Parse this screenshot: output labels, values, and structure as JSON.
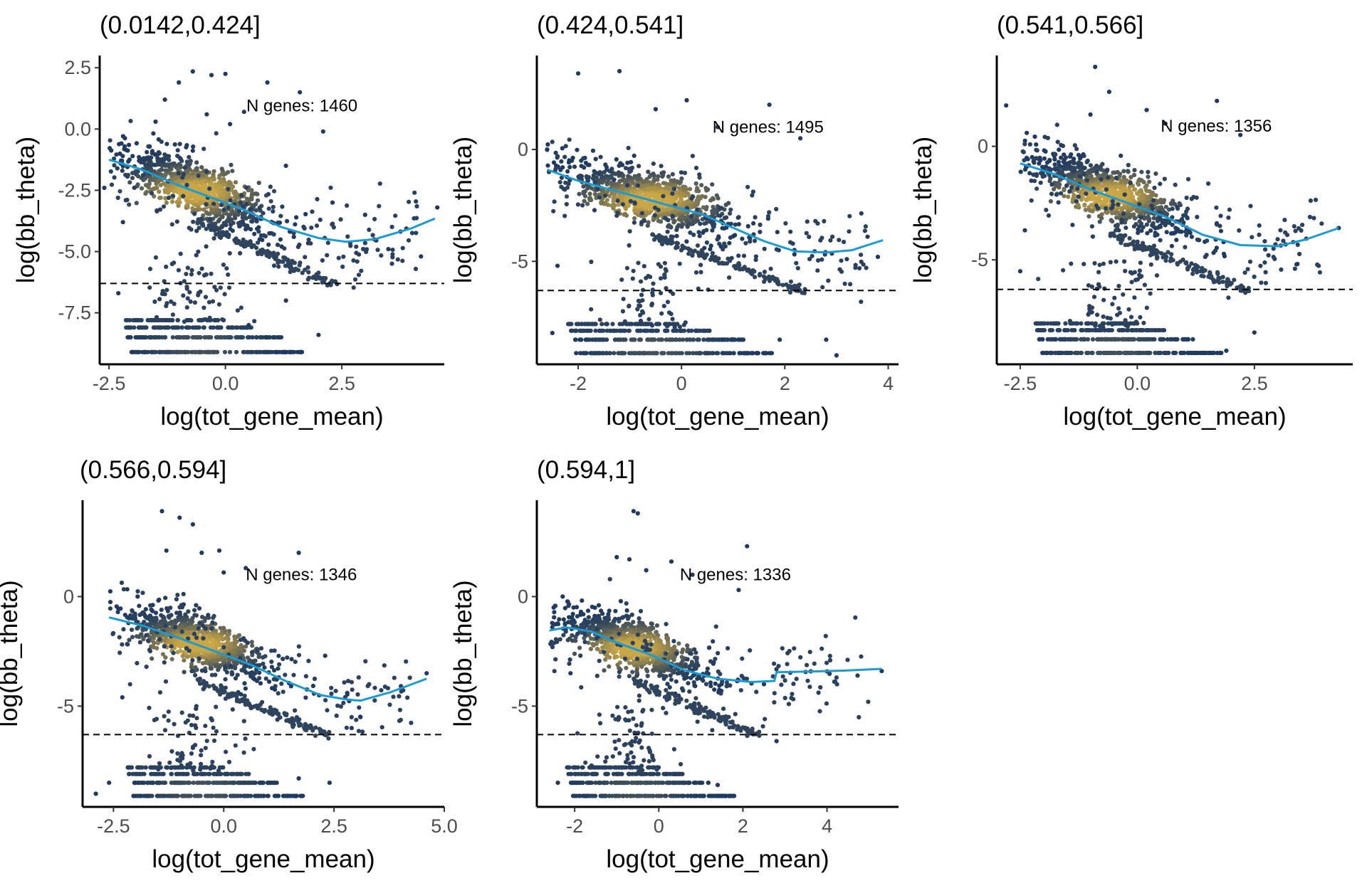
{
  "figure": {
    "point_color_low": "#1f3a5f",
    "point_color_high": "#c9a646",
    "trend_color": "#1b9bd1"
  },
  "chart_data": [
    {
      "type": "scatter",
      "title": "(0.0142,0.424]",
      "xlabel": "log(tot_gene_mean)",
      "ylabel": "log(bb_theta)",
      "xlim": [
        -2.7,
        4.7
      ],
      "ylim": [
        -9.6,
        3.0
      ],
      "xticks": [
        -2.5,
        0.0,
        2.5
      ],
      "xtick_labels": [
        "-2.5",
        "0.0",
        "2.5"
      ],
      "yticks": [
        2.5,
        0.0,
        -2.5,
        -5.0,
        -7.5
      ],
      "ytick_labels": [
        "2.5",
        "0.0",
        "-2.5",
        "-5.0",
        "-7.5"
      ],
      "annotation": {
        "text": "N genes: 1460",
        "x": 0.45,
        "y": 0.95
      },
      "hline_y": -6.3,
      "trend": [
        [
          -2.5,
          -1.25
        ],
        [
          -1.8,
          -1.65
        ],
        [
          -1.0,
          -2.3
        ],
        [
          -0.3,
          -2.8
        ],
        [
          0.4,
          -3.3
        ],
        [
          1.2,
          -4.0
        ],
        [
          2.0,
          -4.45
        ],
        [
          2.6,
          -4.6
        ],
        [
          3.2,
          -4.5
        ],
        [
          4.0,
          -4.05
        ],
        [
          4.5,
          -3.65
        ]
      ],
      "outliers": [
        [
          -1.5,
          0.3
        ],
        [
          -1.3,
          1.2
        ],
        [
          -1.0,
          1.9
        ],
        [
          -0.7,
          2.35
        ],
        [
          -0.3,
          2.2
        ],
        [
          0.0,
          2.25
        ],
        [
          0.4,
          0.7
        ],
        [
          0.9,
          1.9
        ],
        [
          1.6,
          1.5
        ],
        [
          2.1,
          -0.1
        ],
        [
          -0.4,
          0.6
        ],
        [
          0.1,
          0.2
        ],
        [
          1.3,
          -1.5
        ],
        [
          2.3,
          -3.0
        ],
        [
          3.0,
          -3.5
        ],
        [
          3.5,
          -4.9
        ],
        [
          4.2,
          -5.2
        ],
        [
          4.55,
          -3.2
        ],
        [
          -2.2,
          -3.8
        ],
        [
          -2.6,
          -2.4
        ],
        [
          -2.3,
          -6.7
        ],
        [
          0.5,
          -8.0
        ],
        [
          1.3,
          -7.0
        ],
        [
          2.0,
          -8.4
        ]
      ]
    },
    {
      "type": "scatter",
      "title": "(0.424,0.541]",
      "xlabel": "log(tot_gene_mean)",
      "ylabel": "log(bb_theta)",
      "xlim": [
        -2.8,
        4.2
      ],
      "ylim": [
        -9.6,
        4.2
      ],
      "xticks": [
        -2,
        0,
        2,
        4
      ],
      "xtick_labels": [
        "-2",
        "0",
        "2",
        "4"
      ],
      "yticks": [
        0,
        -5
      ],
      "ytick_labels": [
        "0",
        "-5"
      ],
      "annotation": {
        "text": "N genes: 1495",
        "x": 0.6,
        "y": 1.0
      },
      "hline_y": -6.3,
      "trend": [
        [
          -2.6,
          -0.9
        ],
        [
          -2.0,
          -1.4
        ],
        [
          -1.2,
          -1.9
        ],
        [
          -0.4,
          -2.4
        ],
        [
          0.4,
          -2.9
        ],
        [
          1.0,
          -3.5
        ],
        [
          1.6,
          -4.1
        ],
        [
          2.2,
          -4.55
        ],
        [
          2.8,
          -4.6
        ],
        [
          3.3,
          -4.5
        ],
        [
          3.9,
          -4.05
        ]
      ],
      "outliers": [
        [
          -2.0,
          3.4
        ],
        [
          -1.2,
          3.5
        ],
        [
          -0.5,
          1.8
        ],
        [
          0.1,
          2.2
        ],
        [
          0.7,
          1.0
        ],
        [
          1.7,
          2.0
        ],
        [
          2.3,
          0.5
        ],
        [
          -2.6,
          0.0
        ],
        [
          -2.3,
          -0.8
        ],
        [
          3.2,
          -4.9
        ],
        [
          3.6,
          -3.9
        ],
        [
          3.8,
          -4.8
        ],
        [
          -2.4,
          -5.2
        ],
        [
          2.8,
          -8.5
        ],
        [
          3.0,
          -9.2
        ],
        [
          1.9,
          -8.5
        ],
        [
          -2.5,
          -8.2
        ]
      ]
    },
    {
      "type": "scatter",
      "title": "(0.541,0.566]",
      "xlabel": "log(tot_gene_mean)",
      "ylabel": "log(bb_theta)",
      "xlim": [
        -3.0,
        4.6
      ],
      "ylim": [
        -9.6,
        4.0
      ],
      "xticks": [
        -2.5,
        0.0,
        2.5
      ],
      "xtick_labels": [
        "-2.5",
        "0.0",
        "2.5"
      ],
      "yticks": [
        0,
        -5
      ],
      "ytick_labels": [
        "0",
        "-5"
      ],
      "annotation": {
        "text": "N genes: 1356",
        "x": 0.5,
        "y": 0.9
      },
      "hline_y": -6.3,
      "trend": [
        [
          -2.5,
          -0.75
        ],
        [
          -1.8,
          -1.2
        ],
        [
          -1.0,
          -1.9
        ],
        [
          -0.2,
          -2.5
        ],
        [
          0.6,
          -3.1
        ],
        [
          1.4,
          -3.9
        ],
        [
          2.2,
          -4.35
        ],
        [
          3.0,
          -4.4
        ],
        [
          3.6,
          -4.1
        ],
        [
          4.3,
          -3.6
        ]
      ],
      "outliers": [
        [
          -2.8,
          1.8
        ],
        [
          -0.9,
          3.5
        ],
        [
          -0.6,
          2.4
        ],
        [
          0.2,
          1.6
        ],
        [
          0.6,
          1.0
        ],
        [
          1.7,
          2.0
        ],
        [
          2.2,
          0.5
        ],
        [
          -1.0,
          1.4
        ],
        [
          -2.4,
          -3.7
        ],
        [
          2.8,
          -4.8
        ],
        [
          3.4,
          -5.2
        ],
        [
          4.3,
          -3.6
        ],
        [
          -2.5,
          -5.5
        ],
        [
          2.5,
          -8.2
        ],
        [
          1.9,
          -9.0
        ]
      ]
    },
    {
      "type": "scatter",
      "title": "(0.566,0.594]",
      "xlabel": "log(tot_gene_mean)",
      "ylabel": "log(bb_theta)",
      "xlim": [
        -3.2,
        5.0
      ],
      "ylim": [
        -9.6,
        4.4
      ],
      "xticks": [
        -2.5,
        0.0,
        2.5,
        5.0
      ],
      "xtick_labels": [
        "-2.5",
        "0.0",
        "2.5",
        "5.0"
      ],
      "yticks": [
        0,
        -5
      ],
      "ytick_labels": [
        "0",
        "-5"
      ],
      "annotation": {
        "text": "N genes: 1346",
        "x": 0.5,
        "y": 1.0
      },
      "hline_y": -6.3,
      "trend": [
        [
          -2.6,
          -0.95
        ],
        [
          -1.8,
          -1.35
        ],
        [
          -1.0,
          -1.9
        ],
        [
          -0.2,
          -2.5
        ],
        [
          0.6,
          -3.1
        ],
        [
          1.4,
          -3.85
        ],
        [
          2.2,
          -4.5
        ],
        [
          2.8,
          -4.7
        ],
        [
          3.1,
          -4.75
        ],
        [
          3.8,
          -4.35
        ],
        [
          4.6,
          -3.75
        ]
      ],
      "outliers": [
        [
          -1.4,
          3.9
        ],
        [
          -1.0,
          3.6
        ],
        [
          -0.7,
          3.3
        ],
        [
          -1.3,
          2.1
        ],
        [
          -0.5,
          2.0
        ],
        [
          -0.1,
          2.1
        ],
        [
          0.5,
          1.3
        ],
        [
          1.7,
          2.0
        ],
        [
          0.0,
          1.1
        ],
        [
          2.3,
          -2.7
        ],
        [
          2.8,
          -4.4
        ],
        [
          3.1,
          -5.5
        ],
        [
          4.6,
          -3.5
        ],
        [
          -2.3,
          -4.6
        ],
        [
          -2.6,
          -8.5
        ],
        [
          -2.9,
          -9.0
        ],
        [
          1.7,
          -8.3
        ],
        [
          2.4,
          -8.5
        ],
        [
          2.9,
          -6.0
        ]
      ]
    },
    {
      "type": "scatter",
      "title": "(0.594,1]",
      "xlabel": "log(tot_gene_mean)",
      "ylabel": "log(bb_theta)",
      "xlim": [
        -2.9,
        5.7
      ],
      "ylim": [
        -9.6,
        4.4
      ],
      "xticks": [
        -2,
        0,
        2,
        4
      ],
      "xtick_labels": [
        "-2",
        "0",
        "2",
        "4"
      ],
      "yticks": [
        0,
        -5
      ],
      "ytick_labels": [
        "0",
        "-5"
      ],
      "annotation": {
        "text": "N genes: 1336",
        "x": 0.5,
        "y": 1.0
      },
      "hline_y": -6.3,
      "trend": [
        [
          -2.6,
          -1.55
        ],
        [
          -2.2,
          -1.4
        ],
        [
          -1.6,
          -1.6
        ],
        [
          -1.0,
          -2.1
        ],
        [
          -0.2,
          -2.65
        ],
        [
          0.6,
          -3.35
        ],
        [
          1.4,
          -3.75
        ],
        [
          2.2,
          -3.9
        ],
        [
          2.75,
          -3.85
        ],
        [
          2.8,
          -3.45
        ],
        [
          3.6,
          -3.42
        ],
        [
          4.4,
          -3.38
        ],
        [
          5.3,
          -3.3
        ]
      ],
      "outliers": [
        [
          -0.6,
          3.9
        ],
        [
          -0.5,
          3.8
        ],
        [
          -1.0,
          1.8
        ],
        [
          -0.7,
          1.7
        ],
        [
          0.3,
          1.6
        ],
        [
          2.1,
          2.3
        ],
        [
          0.8,
          1.0
        ],
        [
          1.9,
          0.3
        ],
        [
          -0.3,
          1.2
        ],
        [
          -2.5,
          -0.5
        ],
        [
          -2.1,
          -3.5
        ],
        [
          2.5,
          -4.0
        ],
        [
          2.8,
          -6.6
        ],
        [
          5.3,
          -3.4
        ],
        [
          -2.4,
          -8.5
        ],
        [
          1.4,
          -8.6
        ],
        [
          0.9,
          -9.1
        ]
      ]
    }
  ]
}
